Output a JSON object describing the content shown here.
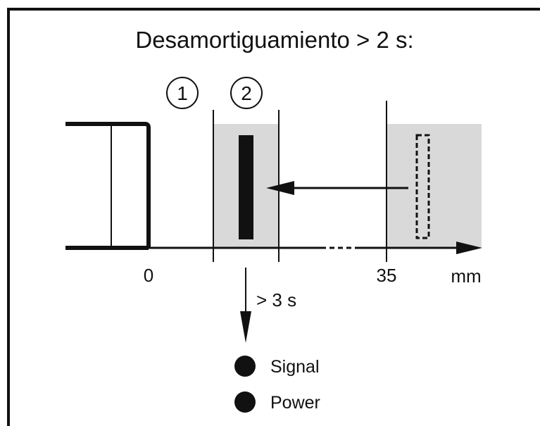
{
  "title": "Desamortiguamiento > 2 s:",
  "zones": {
    "zone1": "1",
    "zone2": "2"
  },
  "axis": {
    "tick_0": "0",
    "tick_35": "35",
    "unit": "mm"
  },
  "delay": "> 3 s",
  "leds": [
    {
      "label": "Signal",
      "state": "on"
    },
    {
      "label": "Power",
      "state": "on"
    }
  ],
  "colors": {
    "line": "#111111",
    "zone_fill": "#d9d9d9"
  }
}
